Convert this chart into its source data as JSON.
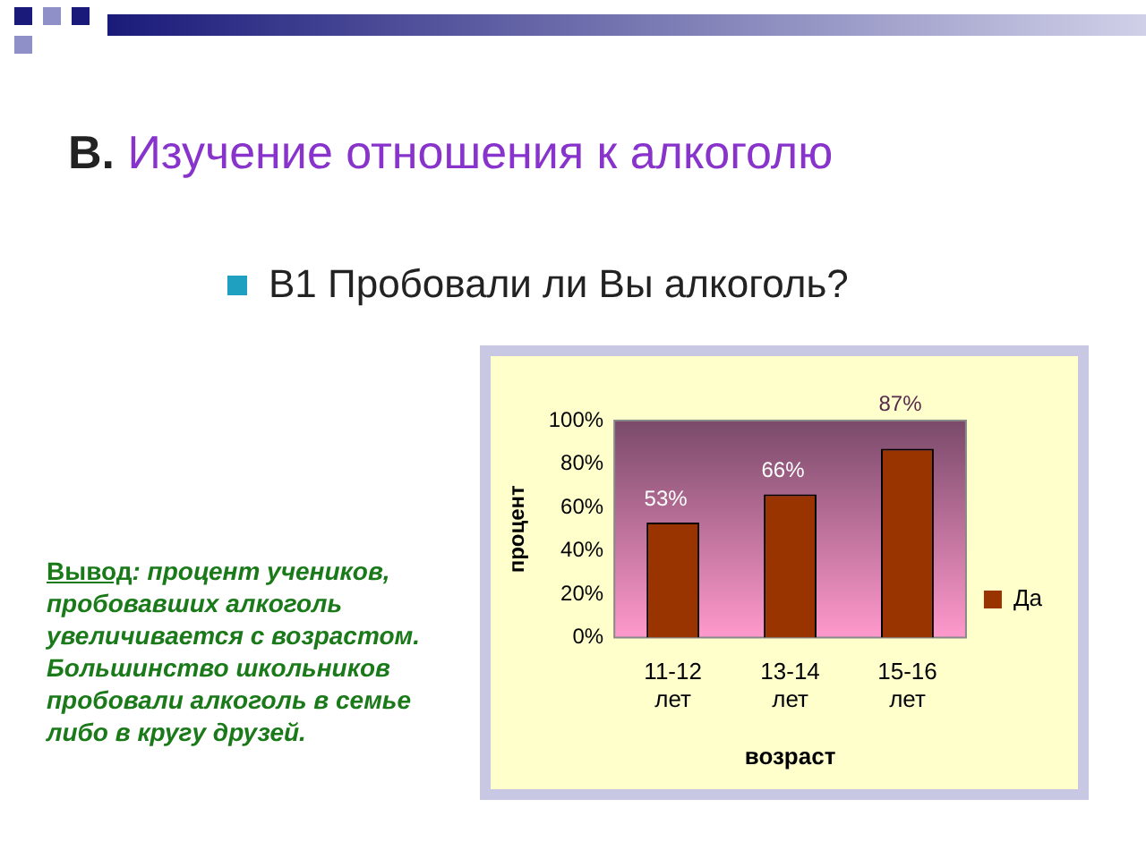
{
  "chart_data": {
    "type": "bar",
    "title": "В. Изучение отношения к алкоголю",
    "subtitle": "В1 Пробовали ли Вы алкоголь?",
    "annotations": [
      "Вывод: процент учеников, пробовавших алкоголь увеличивается с возрастом. Большинство школьников пробовали алкоголь в семье либо в кругу друзей."
    ],
    "xlabel": "возраст",
    "ylabel": "процент",
    "categories": [
      "11-12 лет",
      "13-14 лет",
      "15-16 лет"
    ],
    "series": [
      {
        "name": "Да",
        "color": "#993300",
        "values": [
          53,
          66,
          87
        ],
        "value_labels": [
          "53%",
          "66%",
          "87%"
        ]
      }
    ],
    "ylim": [
      0,
      100
    ],
    "yticks": [
      {
        "value": 0,
        "label": "0%"
      },
      {
        "value": 20,
        "label": "20%"
      },
      {
        "value": 40,
        "label": "40%"
      },
      {
        "value": 60,
        "label": "60%"
      },
      {
        "value": 80,
        "label": "80%"
      },
      {
        "value": 100,
        "label": "100%"
      }
    ],
    "grid": false,
    "legend": "right"
  }
}
